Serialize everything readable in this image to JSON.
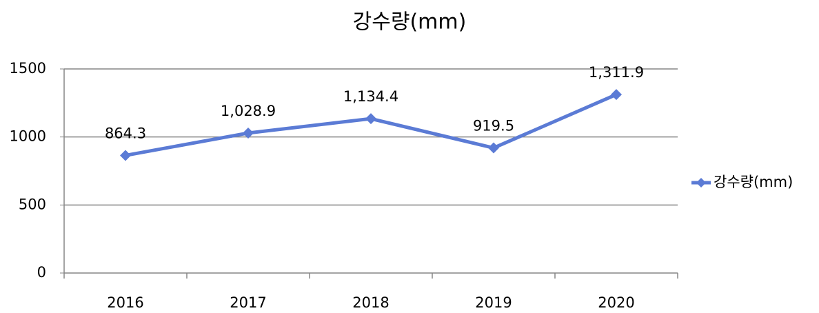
{
  "chart_data": {
    "type": "line",
    "title": "강수량(mm)",
    "categories": [
      "2016",
      "2017",
      "2018",
      "2019",
      "2020"
    ],
    "series": [
      {
        "name": "강수량(mm)",
        "color": "#5b7bd5",
        "values": [
          864.3,
          1028.9,
          1134.4,
          919.5,
          1311.9
        ],
        "value_labels": [
          "864.3",
          "1,028.9",
          "1,134.4",
          "919.5",
          "1,311.9"
        ]
      }
    ],
    "ylim": [
      0,
      1500
    ],
    "yticks": [
      0,
      500,
      1000,
      1500
    ],
    "grid": true,
    "legend": "right"
  }
}
